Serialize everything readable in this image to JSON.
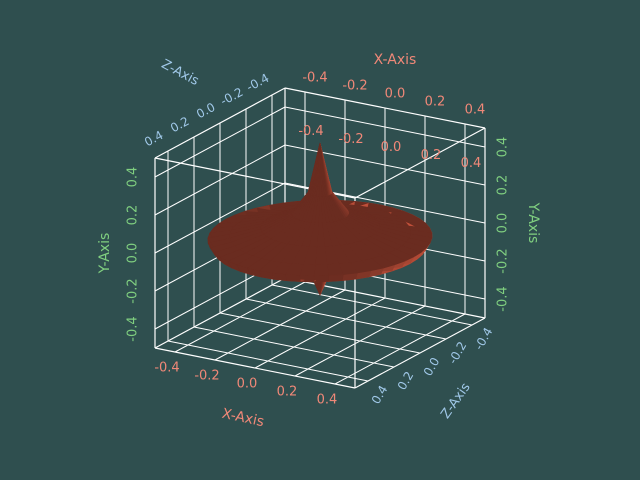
{
  "chart_data": {
    "type": "surface3d",
    "title": "",
    "colors": {
      "background": "#2f4f4f",
      "grid": "#ffffff",
      "x_axis": "#f08878",
      "y_axis": "#80d080",
      "z_axis": "#a0c8e8",
      "surface": "#c0543c"
    },
    "axes": {
      "x": {
        "label": "X-Axis",
        "range": [
          -0.5,
          0.5
        ],
        "ticks": [
          "-0.4",
          "-0.2",
          "0.0",
          "0.2",
          "0.4"
        ]
      },
      "y": {
        "label": "Y-Axis",
        "range": [
          -0.5,
          0.5
        ],
        "ticks": [
          "-0.4",
          "-0.2",
          "0.0",
          "0.2",
          "0.4"
        ]
      },
      "z": {
        "label": "Z-Axis",
        "range": [
          -0.5,
          0.5
        ],
        "ticks": [
          "-0.4",
          "-0.2",
          "0.0",
          "0.2",
          "0.4"
        ]
      }
    },
    "grid": true,
    "surface": {
      "shape": "spinning-top",
      "profile": [
        {
          "r": 0.0,
          "y": 0.5
        },
        {
          "r": 0.05,
          "y": 0.24
        },
        {
          "r": 0.12,
          "y": 0.13
        },
        {
          "r": 0.25,
          "y": 0.06
        },
        {
          "r": 0.38,
          "y": 0.02
        },
        {
          "r": 0.47,
          "y": 0.0
        },
        {
          "r": 0.45,
          "y": -0.04
        },
        {
          "r": 0.36,
          "y": -0.07
        },
        {
          "r": 0.22,
          "y": -0.09
        },
        {
          "r": 0.06,
          "y": -0.13
        },
        {
          "r": 0.0,
          "y": -0.3
        }
      ]
    }
  }
}
